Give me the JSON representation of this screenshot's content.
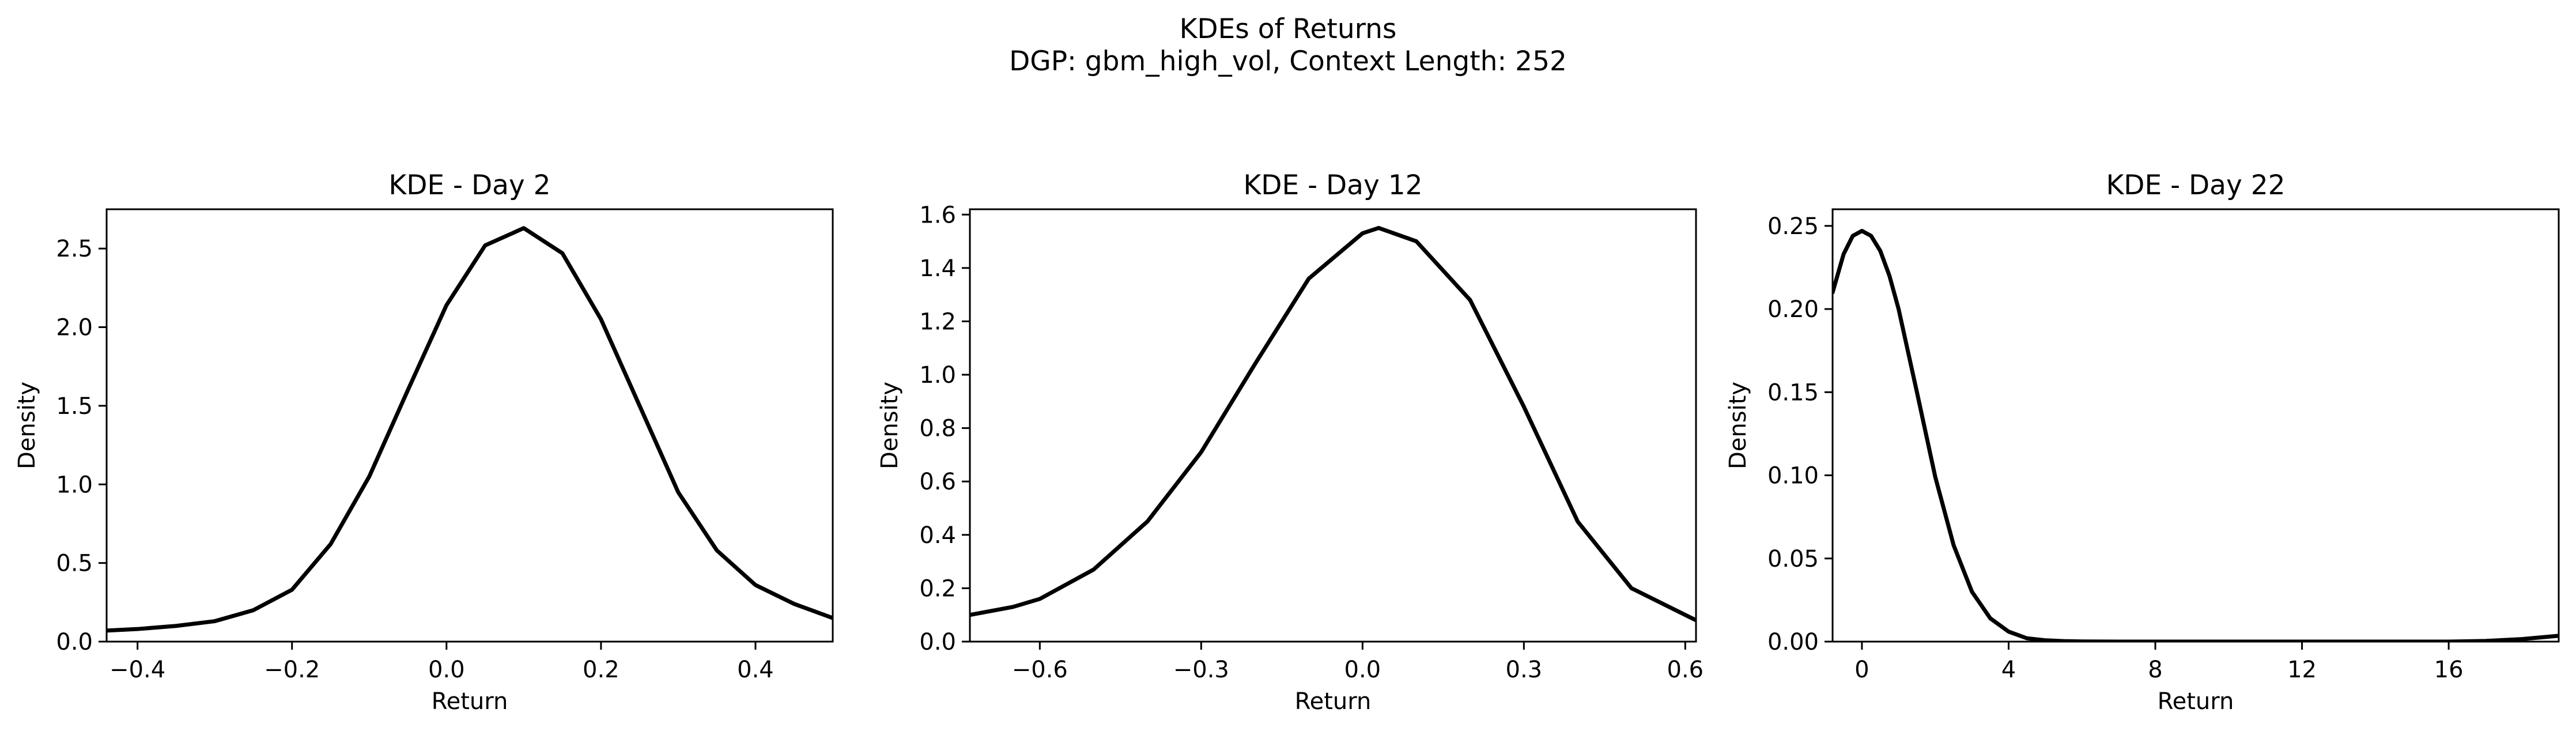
{
  "figure": {
    "suptitle_line1": "KDEs of Returns",
    "suptitle_line2": "DGP: gbm_high_vol, Context Length: 252"
  },
  "chart_data": [
    {
      "type": "line",
      "title": "KDE - Day 2",
      "xlabel": "Return",
      "ylabel": "Density",
      "xlim": [
        -0.44,
        0.5
      ],
      "ylim": [
        0,
        2.75
      ],
      "xticks": [
        -0.4,
        -0.2,
        0.0,
        0.2,
        0.4
      ],
      "xtick_labels": [
        "−0.4",
        "−0.2",
        "0.0",
        "0.2",
        "0.4"
      ],
      "yticks": [
        0.0,
        0.5,
        1.0,
        1.5,
        2.0,
        2.5
      ],
      "ytick_labels": [
        "0.0",
        "0.5",
        "1.0",
        "1.5",
        "2.0",
        "2.5"
      ],
      "grid": false,
      "color": "#000000",
      "series": [
        {
          "x": [
            -0.44,
            -0.4,
            -0.35,
            -0.3,
            -0.25,
            -0.2,
            -0.15,
            -0.1,
            -0.05,
            0.0,
            0.05,
            0.1,
            0.15,
            0.2,
            0.25,
            0.3,
            0.35,
            0.4,
            0.45,
            0.5
          ],
          "y": [
            0.07,
            0.08,
            0.1,
            0.13,
            0.2,
            0.33,
            0.62,
            1.05,
            1.6,
            2.14,
            2.52,
            2.63,
            2.47,
            2.05,
            1.5,
            0.95,
            0.58,
            0.36,
            0.24,
            0.15
          ]
        }
      ]
    },
    {
      "type": "line",
      "title": "KDE - Day 12",
      "xlabel": "Return",
      "ylabel": "Density",
      "xlim": [
        -0.73,
        0.62
      ],
      "ylim": [
        0,
        1.62
      ],
      "xticks": [
        -0.6,
        -0.3,
        0.0,
        0.3,
        0.6
      ],
      "xtick_labels": [
        "−0.6",
        "−0.3",
        "0.0",
        "0.3",
        "0.6"
      ],
      "yticks": [
        0.0,
        0.2,
        0.4,
        0.6,
        0.8,
        1.0,
        1.2,
        1.4,
        1.6
      ],
      "ytick_labels": [
        "0.0",
        "0.2",
        "0.4",
        "0.6",
        "0.8",
        "1.0",
        "1.2",
        "1.4",
        "1.6"
      ],
      "grid": false,
      "color": "#000000",
      "series": [
        {
          "x": [
            -0.73,
            -0.65,
            -0.6,
            -0.5,
            -0.4,
            -0.3,
            -0.2,
            -0.1,
            0.0,
            0.03,
            0.1,
            0.2,
            0.3,
            0.4,
            0.5,
            0.62
          ],
          "y": [
            0.1,
            0.13,
            0.16,
            0.27,
            0.45,
            0.71,
            1.04,
            1.36,
            1.53,
            1.55,
            1.5,
            1.28,
            0.88,
            0.45,
            0.2,
            0.08
          ]
        }
      ]
    },
    {
      "type": "line",
      "title": "KDE - Day 22",
      "xlabel": "Return",
      "ylabel": "Density",
      "xlim": [
        -0.8,
        19
      ],
      "ylim": [
        0,
        0.26
      ],
      "xticks": [
        0,
        4,
        8,
        12,
        16
      ],
      "xtick_labels": [
        "0",
        "4",
        "8",
        "12",
        "16"
      ],
      "yticks": [
        0.0,
        0.05,
        0.1,
        0.15,
        0.2,
        0.25
      ],
      "ytick_labels": [
        "0.00",
        "0.05",
        "0.10",
        "0.15",
        "0.20",
        "0.25"
      ],
      "grid": false,
      "color": "#000000",
      "series": [
        {
          "x": [
            -0.8,
            -0.5,
            -0.25,
            0.0,
            0.25,
            0.5,
            0.75,
            1.0,
            1.5,
            2.0,
            2.5,
            3.0,
            3.5,
            4.0,
            4.5,
            5.0,
            5.5,
            6.0,
            7.0,
            8.0,
            10.0,
            12.0,
            14.0,
            16.0,
            17.0,
            18.0,
            19.0
          ],
          "y": [
            0.21,
            0.233,
            0.244,
            0.247,
            0.244,
            0.235,
            0.22,
            0.2,
            0.15,
            0.099,
            0.058,
            0.03,
            0.014,
            0.006,
            0.002,
            0.0008,
            0.0003,
            0.0001,
            0.0,
            0.0,
            0.0,
            0.0,
            0.0,
            0.0,
            0.0004,
            0.0015,
            0.0035
          ]
        }
      ]
    }
  ]
}
